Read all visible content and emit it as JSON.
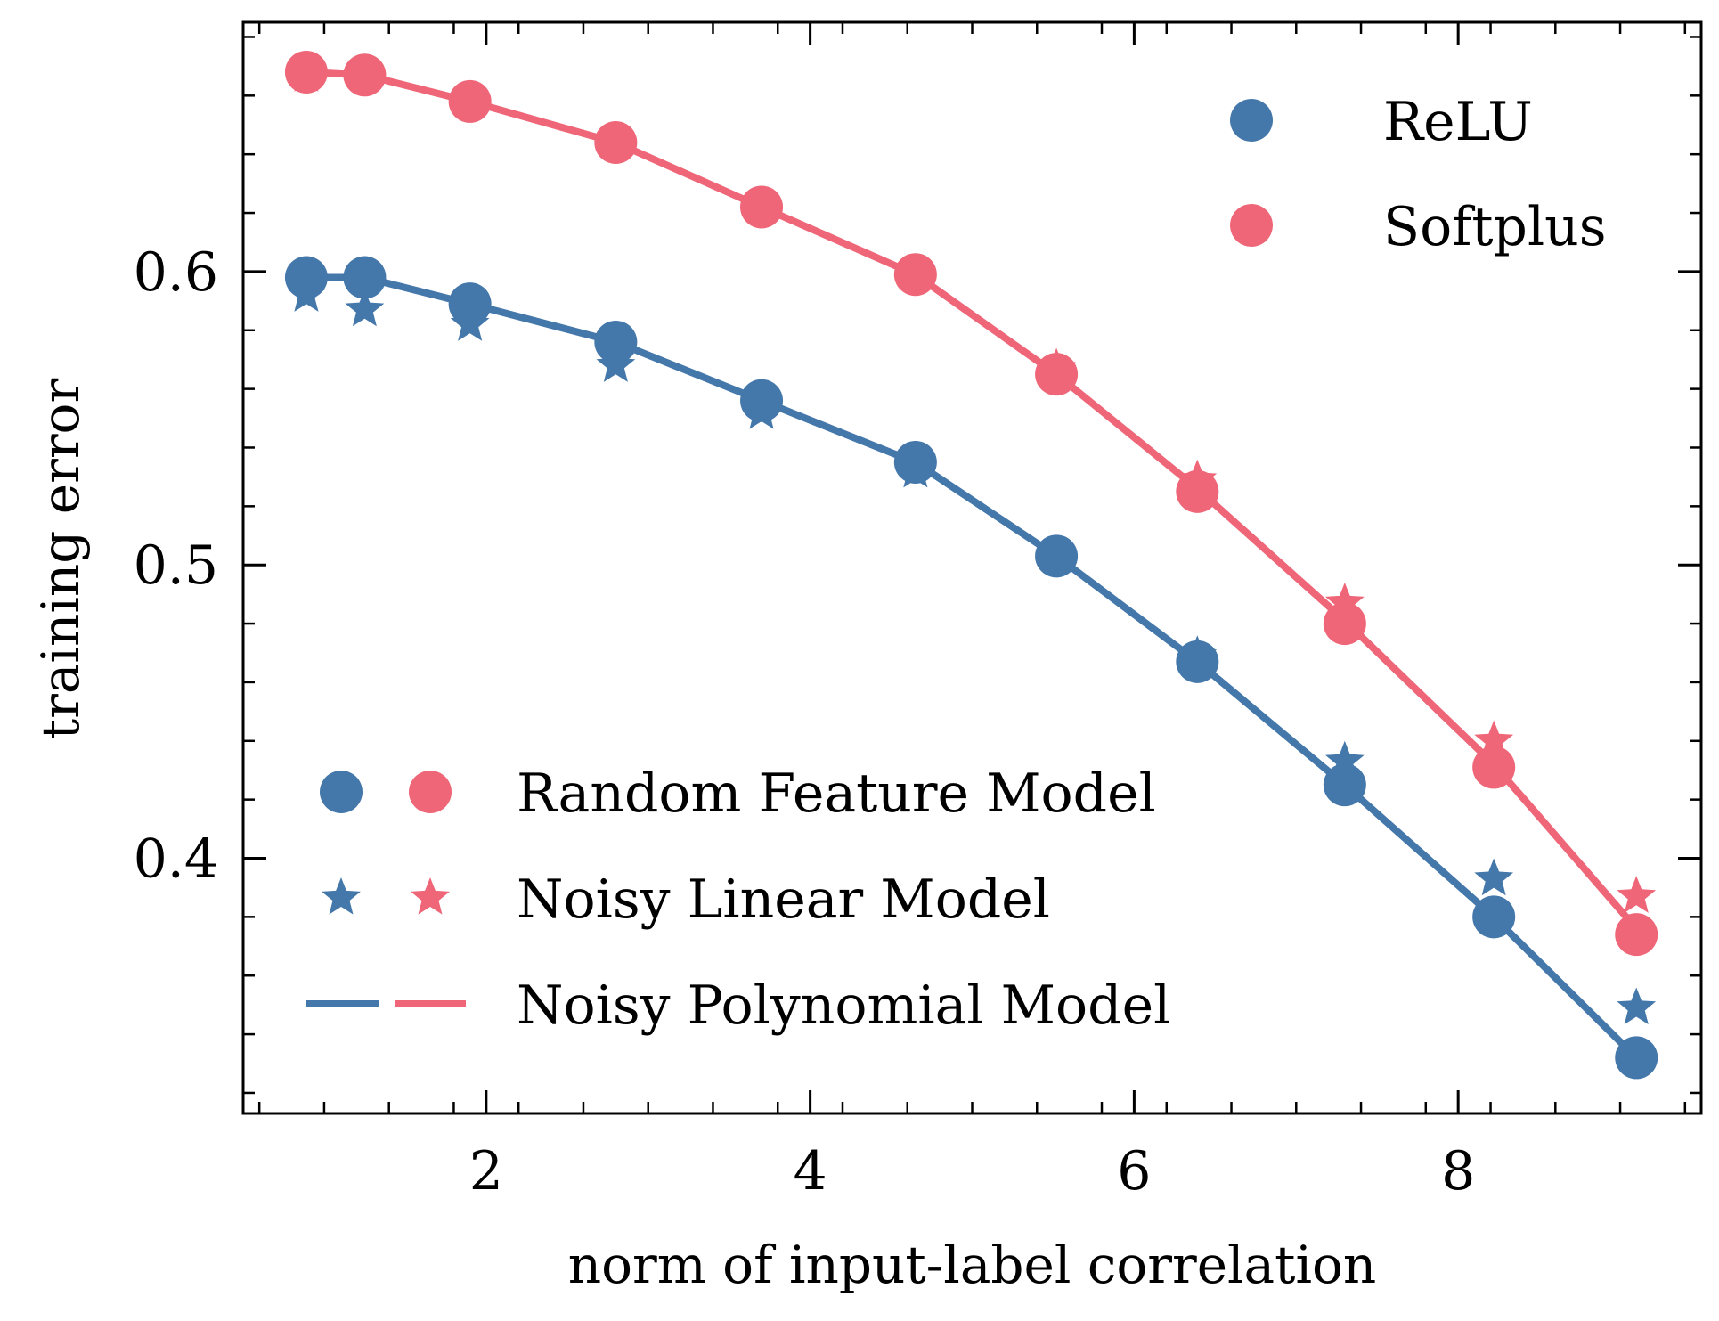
{
  "chart_data": {
    "type": "line",
    "xlabel": "norm of input-label correlation",
    "ylabel": "training error",
    "xlim": [
      0.5,
      9.5
    ],
    "ylim": [
      0.313,
      0.685
    ],
    "xticks": [
      2,
      4,
      6,
      8
    ],
    "xtick_labels": [
      "2",
      "4",
      "6",
      "8"
    ],
    "yticks": [
      0.4,
      0.5,
      0.6
    ],
    "ytick_labels": [
      "0.4",
      "0.5",
      "0.6"
    ],
    "x": [
      0.89,
      1.25,
      1.9,
      2.8,
      3.7,
      4.65,
      5.52,
      6.39,
      7.3,
      8.22,
      9.1
    ],
    "series": [
      {
        "activation": "ReLU",
        "color": "#4477AA",
        "random_feature_model": [
          0.598,
          0.598,
          0.589,
          0.576,
          0.556,
          0.535,
          0.503,
          0.467,
          0.425,
          0.38,
          0.332
        ],
        "noisy_linear_model": [
          0.592,
          0.587,
          0.582,
          0.568,
          0.552,
          0.532,
          0.503,
          0.469,
          0.433,
          0.393,
          0.349
        ],
        "noisy_polynomial_model": [
          0.598,
          0.598,
          0.589,
          0.576,
          0.556,
          0.535,
          0.503,
          0.467,
          0.425,
          0.38,
          0.332
        ]
      },
      {
        "activation": "Softplus",
        "color": "#EE6677",
        "random_feature_model": [
          0.668,
          0.667,
          0.658,
          0.644,
          0.622,
          0.599,
          0.565,
          0.525,
          0.48,
          0.431,
          0.374
        ],
        "noisy_linear_model": [
          0.667,
          0.667,
          0.658,
          0.644,
          0.622,
          0.599,
          0.567,
          0.529,
          0.487,
          0.44,
          0.387
        ],
        "noisy_polynomial_model": [
          0.668,
          0.667,
          0.658,
          0.644,
          0.622,
          0.599,
          0.565,
          0.526,
          0.481,
          0.432,
          0.376
        ]
      }
    ],
    "legends": {
      "activation": {
        "placement": "top-right",
        "entries": [
          {
            "label": "ReLU",
            "color": "#4477AA"
          },
          {
            "label": "Softplus",
            "color": "#EE6677"
          }
        ]
      },
      "model": {
        "placement": "bottom-left",
        "entries": [
          {
            "label": "Random Feature Model",
            "marker": "circle"
          },
          {
            "label": "Noisy Linear Model",
            "marker": "star"
          },
          {
            "label": "Noisy Polynomial Model",
            "marker": "line"
          }
        ]
      }
    },
    "grid": false
  }
}
